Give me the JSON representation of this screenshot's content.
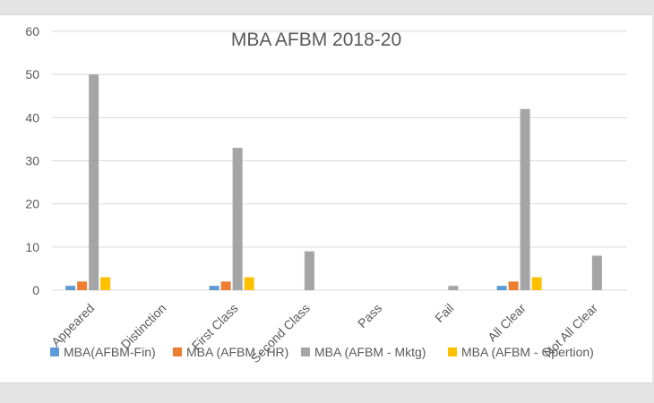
{
  "chart_data": {
    "type": "bar",
    "title": "MBA AFBM 2018-20",
    "xlabel": "",
    "ylabel": "",
    "ylim": [
      0,
      60
    ],
    "yticks": [
      0,
      10,
      20,
      30,
      40,
      50,
      60
    ],
    "grid": true,
    "legend_position": "bottom",
    "categories": [
      "Appeared",
      "Distinction",
      "First Class",
      "Second Class",
      "Pass",
      "Fail",
      "All Clear",
      "Not All Clear"
    ],
    "series": [
      {
        "name": "MBA(AFBM-Fin)",
        "color": "#5b9bd5",
        "values": [
          1,
          0,
          1,
          0,
          0,
          0,
          1,
          0
        ]
      },
      {
        "name": "MBA (AFBM - HR)",
        "color": "#ed7d31",
        "values": [
          2,
          0,
          2,
          0,
          0,
          0,
          2,
          0
        ]
      },
      {
        "name": "MBA (AFBM - Mktg)",
        "color": "#a5a5a5",
        "values": [
          50,
          0,
          33,
          9,
          0,
          1,
          42,
          8
        ]
      },
      {
        "name": "MBA (AFBM - Opertion)",
        "color": "#ffc000",
        "values": [
          3,
          0,
          3,
          0,
          0,
          0,
          3,
          0
        ]
      }
    ]
  }
}
